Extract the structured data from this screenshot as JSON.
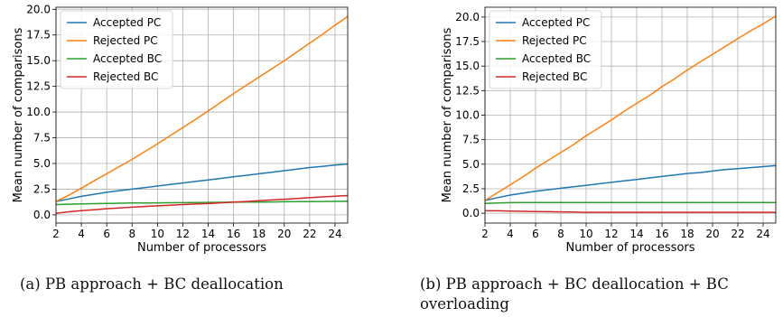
{
  "figure": {
    "captions": [
      "(a) PB approach + BC deallocation",
      "(b) PB approach + BC deallocation + BC overloading"
    ]
  },
  "chart_data": [
    {
      "type": "line",
      "xlabel": "Number of processors",
      "ylabel": "Mean number of comparisons",
      "xlim": [
        2,
        25
      ],
      "ylim": [
        -0.8,
        20.2
      ],
      "xticks": [
        2,
        4,
        6,
        8,
        10,
        12,
        14,
        16,
        18,
        20,
        22,
        24
      ],
      "yticks": [
        0.0,
        2.5,
        5.0,
        7.5,
        10.0,
        12.5,
        15.0,
        17.5,
        20.0
      ],
      "ytick_labels": [
        "0.0",
        "2.5",
        "5.0",
        "7.5",
        "10.0",
        "12.5",
        "15.0",
        "17.5",
        "20.0"
      ],
      "grid": true,
      "legend_position": "upper-left",
      "x": [
        2,
        3,
        4,
        5,
        6,
        7,
        8,
        9,
        10,
        11,
        12,
        13,
        14,
        15,
        16,
        17,
        18,
        19,
        20,
        21,
        22,
        23,
        24,
        25
      ],
      "series": [
        {
          "name": "Accepted PC",
          "color": "#1f77b4",
          "values": [
            1.3,
            1.55,
            1.8,
            2.0,
            2.2,
            2.35,
            2.5,
            2.65,
            2.8,
            2.95,
            3.1,
            3.25,
            3.4,
            3.55,
            3.7,
            3.85,
            4.0,
            4.15,
            4.3,
            4.45,
            4.6,
            4.72,
            4.85,
            4.95
          ]
        },
        {
          "name": "Rejected PC",
          "color": "#ff7f0e",
          "values": [
            1.3,
            1.9,
            2.6,
            3.3,
            4.0,
            4.7,
            5.4,
            6.15,
            6.9,
            7.7,
            8.5,
            9.3,
            10.1,
            10.95,
            11.8,
            12.6,
            13.4,
            14.2,
            15.0,
            15.85,
            16.7,
            17.55,
            18.45,
            19.3
          ]
        },
        {
          "name": "Accepted BC",
          "color": "#2ca02c",
          "values": [
            1.0,
            1.04,
            1.07,
            1.09,
            1.11,
            1.13,
            1.15,
            1.16,
            1.17,
            1.18,
            1.19,
            1.2,
            1.21,
            1.22,
            1.23,
            1.24,
            1.25,
            1.26,
            1.27,
            1.28,
            1.29,
            1.3,
            1.31,
            1.32
          ]
        },
        {
          "name": "Rejected BC",
          "color": "#d62728",
          "values": [
            0.15,
            0.3,
            0.4,
            0.5,
            0.6,
            0.67,
            0.75,
            0.82,
            0.88,
            0.94,
            1.0,
            1.05,
            1.1,
            1.17,
            1.24,
            1.3,
            1.37,
            1.45,
            1.52,
            1.6,
            1.67,
            1.75,
            1.82,
            1.88
          ]
        }
      ]
    },
    {
      "type": "line",
      "xlabel": "Number of processors",
      "ylabel": "Mean number of comparisons",
      "xlim": [
        2,
        25
      ],
      "ylim": [
        -1.0,
        21.0
      ],
      "xticks": [
        2,
        4,
        6,
        8,
        10,
        12,
        14,
        16,
        18,
        20,
        22,
        24
      ],
      "yticks": [
        0.0,
        2.5,
        5.0,
        7.5,
        10.0,
        12.5,
        15.0,
        17.5,
        20.0
      ],
      "ytick_labels": [
        "0.0",
        "2.5",
        "5.0",
        "7.5",
        "10.0",
        "12.5",
        "15.0",
        "17.5",
        "20.0"
      ],
      "grid": true,
      "legend_position": "upper-left",
      "x": [
        2,
        3,
        4,
        5,
        6,
        7,
        8,
        9,
        10,
        11,
        12,
        13,
        14,
        15,
        16,
        17,
        18,
        19,
        20,
        21,
        22,
        23,
        24,
        25
      ],
      "series": [
        {
          "name": "Accepted PC",
          "color": "#1f77b4",
          "values": [
            1.3,
            1.6,
            1.85,
            2.05,
            2.25,
            2.4,
            2.55,
            2.7,
            2.85,
            3.0,
            3.15,
            3.3,
            3.45,
            3.6,
            3.75,
            3.9,
            4.05,
            4.15,
            4.3,
            4.45,
            4.55,
            4.65,
            4.75,
            4.85
          ]
        },
        {
          "name": "Rejected PC",
          "color": "#ff7f0e",
          "values": [
            1.3,
            2.1,
            2.9,
            3.7,
            4.6,
            5.4,
            6.2,
            7.0,
            7.9,
            8.7,
            9.5,
            10.4,
            11.2,
            12.0,
            12.9,
            13.7,
            14.6,
            15.4,
            16.2,
            17.0,
            17.8,
            18.6,
            19.3,
            20.1
          ]
        },
        {
          "name": "Accepted BC",
          "color": "#2ca02c",
          "values": [
            1.0,
            1.05,
            1.08,
            1.1,
            1.1,
            1.1,
            1.1,
            1.1,
            1.1,
            1.1,
            1.1,
            1.1,
            1.1,
            1.1,
            1.1,
            1.1,
            1.1,
            1.1,
            1.1,
            1.1,
            1.1,
            1.1,
            1.1,
            1.1
          ]
        },
        {
          "name": "Rejected BC",
          "color": "#d62728",
          "values": [
            0.25,
            0.25,
            0.22,
            0.2,
            0.18,
            0.16,
            0.14,
            0.12,
            0.1,
            0.1,
            0.1,
            0.1,
            0.1,
            0.1,
            0.1,
            0.1,
            0.1,
            0.1,
            0.1,
            0.1,
            0.1,
            0.1,
            0.1,
            0.1
          ]
        }
      ]
    }
  ]
}
